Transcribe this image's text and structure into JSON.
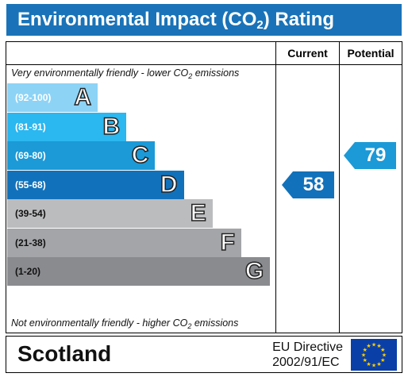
{
  "title": {
    "main": "Environmental Impact (CO",
    "sub": "2",
    "tail": ") Rating"
  },
  "columns": {
    "current": "Current",
    "potential": "Potential"
  },
  "notes": {
    "top": {
      "text": "Very environmentally friendly - lower CO",
      "sub": "2",
      "tail": " emissions"
    },
    "bottom": {
      "text": "Not environmentally friendly - higher CO",
      "sub": "2",
      "tail": " emissions"
    }
  },
  "footer": {
    "region": "Scotland",
    "directive_line1": "EU Directive",
    "directive_line2": "2002/91/EC",
    "flag_icon": "eu-flag-icon"
  },
  "chart_data": {
    "type": "bar",
    "bands": [
      {
        "letter": "A",
        "range": "(92-100)",
        "color": "#8dd3f6"
      },
      {
        "letter": "B",
        "range": "(81-91)",
        "color": "#2bb7f0"
      },
      {
        "letter": "C",
        "range": "(69-80)",
        "color": "#1b9ad7"
      },
      {
        "letter": "D",
        "range": "(55-68)",
        "color": "#1172bb"
      },
      {
        "letter": "E",
        "range": "(39-54)",
        "color": "#bbbcbe"
      },
      {
        "letter": "F",
        "range": "(21-38)",
        "color": "#a4a5a8"
      },
      {
        "letter": "G",
        "range": "(1-20)",
        "color": "#8a8b8e"
      }
    ],
    "current": {
      "value": 58,
      "band": "D",
      "color": "#1172bb"
    },
    "potential": {
      "value": 79,
      "band": "C",
      "color": "#1b9ad7"
    }
  }
}
